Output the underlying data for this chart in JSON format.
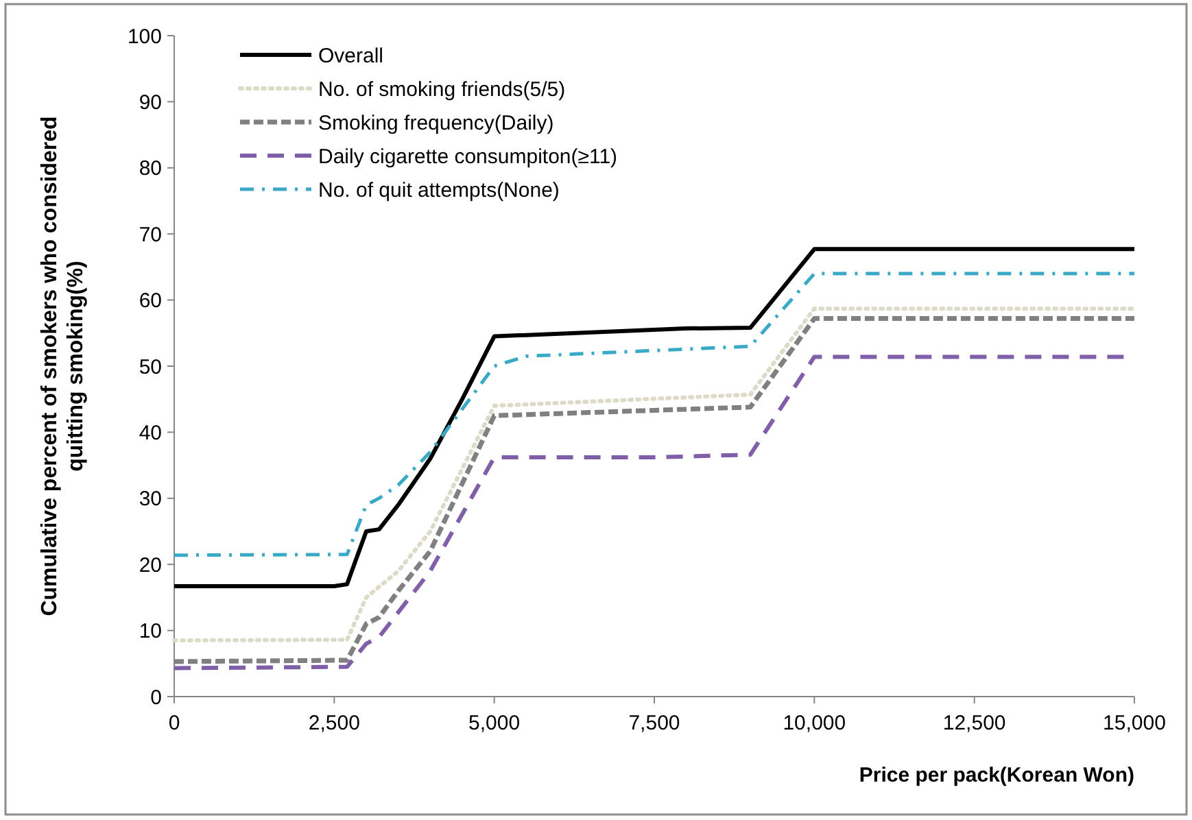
{
  "chart_data": {
    "type": "line",
    "xlabel": "Price per pack(Korean Won)",
    "ylabel": "Cumulative percent of smokers who considered\nquitting smoking(%)",
    "xlim": [
      0,
      15000
    ],
    "xticks": [
      0,
      {
        "value": 2500,
        "label": "2,500"
      },
      {
        "value": 5000,
        "label": "5,000"
      },
      {
        "value": 7500,
        "label": "7,500"
      },
      {
        "value": 10000,
        "label": "10,000"
      },
      {
        "value": 12500,
        "label": "12,500"
      },
      {
        "value": 15000,
        "label": "15,000"
      }
    ],
    "ylim": [
      0,
      100
    ],
    "yticks": [
      0,
      10,
      20,
      30,
      40,
      50,
      60,
      70,
      80,
      90,
      100
    ],
    "grid": false,
    "legend": "top left",
    "marker": "none",
    "series": [
      {
        "name": "Overall",
        "color": "#000000",
        "line_style": "solid",
        "x": [
          0,
          2500,
          2700,
          3000,
          3200,
          3500,
          4000,
          4500,
          5000,
          8000,
          9000,
          10000,
          15000
        ],
        "values": [
          16.7,
          16.7,
          17,
          25,
          25.3,
          29,
          36,
          45,
          54.5,
          55.7,
          55.8,
          67.7,
          67.7
        ]
      },
      {
        "name": "No. of smoking friends(5/5)",
        "color": "#dddac8",
        "line_style": "dotted",
        "x": [
          0,
          2700,
          3000,
          3500,
          4000,
          5000,
          9000,
          10000,
          15000
        ],
        "values": [
          8.5,
          8.6,
          15,
          19,
          25,
          44,
          45.7,
          58.7,
          58.7
        ]
      },
      {
        "name": "Smoking frequency(Daily)",
        "color": "#808080",
        "line_style": "dashed",
        "x": [
          0,
          2700,
          3000,
          3200,
          3500,
          4000,
          5000,
          9000,
          10000,
          15000
        ],
        "values": [
          5.3,
          5.5,
          11,
          12,
          16,
          22,
          42.5,
          43.8,
          57.2,
          57.2
        ]
      },
      {
        "name": "Daily cigarette consumpiton(≥11)",
        "color": "#7f5fa8",
        "line_style": "longdash",
        "x": [
          0,
          2700,
          3000,
          3200,
          4000,
          5000,
          7500,
          9000,
          10000,
          15000
        ],
        "values": [
          4.3,
          4.5,
          8,
          9,
          19,
          36.2,
          36.2,
          36.6,
          51.4,
          51.4
        ]
      },
      {
        "name": "No. of quit attempts(None)",
        "color": "#3aa9c7",
        "line_style": "dashdot",
        "x": [
          0,
          2700,
          3000,
          3200,
          3500,
          4000,
          5000,
          5500,
          9000,
          10000,
          15000
        ],
        "values": [
          21.4,
          21.5,
          29,
          30,
          32,
          37,
          50,
          51.5,
          53,
          64,
          64
        ]
      }
    ]
  }
}
